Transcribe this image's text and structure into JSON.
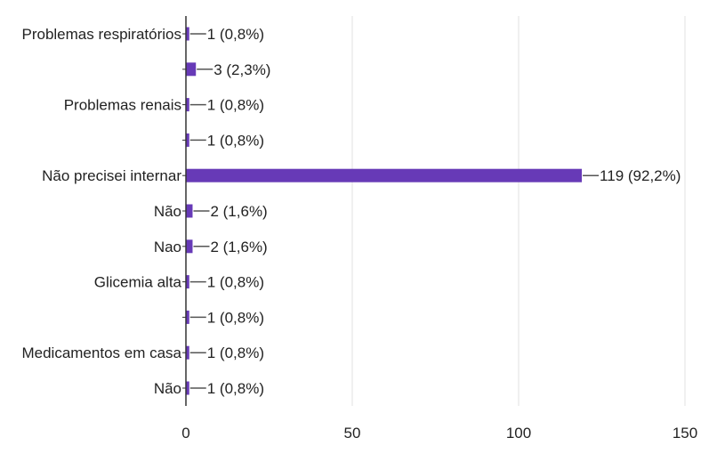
{
  "chart_data": {
    "type": "bar",
    "orientation": "horizontal",
    "title": "",
    "xlabel": "",
    "ylabel": "",
    "xlim": [
      0,
      150
    ],
    "x_ticks": [
      "0",
      "50",
      "100",
      "150"
    ],
    "grid": true,
    "legend": "none",
    "bar_color": "#673ab7",
    "categories": [
      "Problemas respiratórios",
      "",
      "Problemas renais",
      "",
      "Não precisei internar",
      "Não",
      "Nao",
      "Glicemia alta",
      "",
      "Medicamentos em casa",
      "Não"
    ],
    "values": [
      1,
      3,
      1,
      1,
      119,
      2,
      2,
      1,
      1,
      1,
      1
    ],
    "data_labels": [
      "1 (0,8%)",
      "3 (2,3%)",
      "1 (0,8%)",
      "1 (0,8%)",
      "119 (92,2%)",
      "2 (1,6%)",
      "2 (1,6%)",
      "1 (0,8%)",
      "1 (0,8%)",
      "1 (0,8%)",
      "1 (0,8%)"
    ]
  }
}
